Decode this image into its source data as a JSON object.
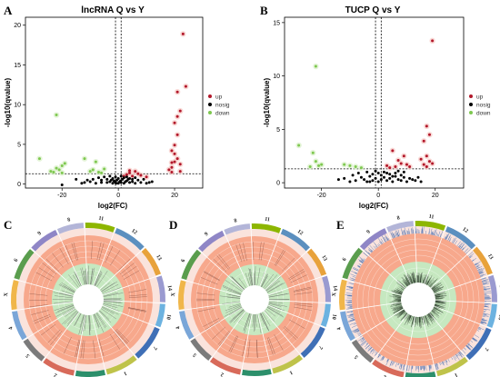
{
  "panels": {
    "A": "A",
    "B": "B",
    "C": "C",
    "D": "D",
    "E": "E"
  },
  "colors": {
    "up": "#b2182b",
    "nosig": "#000000",
    "down": "#7ec850",
    "ring_outer": "#f1b1a5",
    "ring_salmon": "#f7a88c",
    "ring_green": "#c6e8c0",
    "ring_pale": "#fae3dc"
  },
  "chart_data": [
    {
      "type": "scatter",
      "id": "A",
      "title": "lncRNA Q vs Y",
      "xlabel": "log2(FC)",
      "ylabel": "-log10(qvalue)",
      "xlim": [
        -33,
        30
      ],
      "ylim": [
        -0.5,
        21
      ],
      "xticks": [
        -20,
        0,
        20
      ],
      "yticks": [
        0,
        5,
        10,
        15,
        20
      ],
      "vlines": [
        -1,
        1
      ],
      "hline": 1.3,
      "legend": {
        "position": "right",
        "entries": [
          "up",
          "nosig",
          "down"
        ]
      },
      "series": [
        {
          "name": "up",
          "points": [
            [
              23,
              18.9
            ],
            [
              24,
              12.3
            ],
            [
              21,
              11.6
            ],
            [
              22,
              9.2
            ],
            [
              21,
              8.5
            ],
            [
              20,
              7.7
            ],
            [
              21,
              6.2
            ],
            [
              20,
              4.9
            ],
            [
              19,
              4.2
            ],
            [
              20,
              3.8
            ],
            [
              21,
              3.2
            ],
            [
              19,
              2.7
            ],
            [
              22,
              2.5
            ],
            [
              19,
              2.1
            ],
            [
              20,
              2.8
            ],
            [
              18,
              1.8
            ],
            [
              22,
              1.6
            ],
            [
              19,
              1.5
            ],
            [
              4,
              1.4
            ],
            [
              6,
              1.6
            ],
            [
              3,
              1.2
            ],
            [
              5,
              1.0
            ],
            [
              7,
              1.3
            ],
            [
              8,
              1.1
            ],
            [
              10,
              0.9
            ],
            [
              4,
              1.7
            ],
            [
              2,
              1.0
            ]
          ]
        },
        {
          "name": "nosig",
          "points": [
            [
              -6,
              0.2
            ],
            [
              -4,
              0.6
            ],
            [
              -3,
              0.3
            ],
            [
              -2,
              0.1
            ],
            [
              -1.5,
              0.4
            ],
            [
              -1,
              0.2
            ],
            [
              -0.5,
              0.5
            ],
            [
              0,
              0.1
            ],
            [
              0.5,
              0.3
            ],
            [
              1,
              0.2
            ],
            [
              1.5,
              0.6
            ],
            [
              2,
              0.1
            ],
            [
              3,
              0.4
            ],
            [
              4,
              0.2
            ],
            [
              5,
              0.3
            ],
            [
              6,
              0.1
            ],
            [
              7,
              0.5
            ],
            [
              8,
              0.2
            ],
            [
              -8,
              0.1
            ],
            [
              -10,
              0.3
            ],
            [
              -12,
              0.2
            ],
            [
              -9,
              0.6
            ],
            [
              -7,
              0.8
            ],
            [
              -5,
              0.9
            ],
            [
              -3,
              1.0
            ],
            [
              -2,
              0.7
            ],
            [
              -1,
              0.9
            ],
            [
              0,
              0.7
            ],
            [
              1,
              1.0
            ],
            [
              2,
              0.8
            ],
            [
              3,
              0.9
            ],
            [
              4,
              0.7
            ],
            [
              5,
              0.6
            ],
            [
              6,
              0.8
            ],
            [
              -4,
              0.2
            ],
            [
              -2.5,
              0.5
            ],
            [
              -0.8,
              0.1
            ],
            [
              0.8,
              0.4
            ],
            [
              2.5,
              0.3
            ],
            [
              3.5,
              0.6
            ],
            [
              -20,
              -0.1
            ],
            [
              -15,
              0.6
            ],
            [
              -13,
              0.1
            ],
            [
              -11,
              0.5
            ],
            [
              10,
              0.1
            ],
            [
              12,
              0.3
            ],
            [
              9,
              0.6
            ],
            [
              11,
              0.2
            ],
            [
              -6,
              0.5
            ],
            [
              -1.2,
              0.3
            ]
          ]
        },
        {
          "name": "down",
          "points": [
            [
              -22,
              8.7
            ],
            [
              -28,
              3.2
            ],
            [
              -20,
              2.3
            ],
            [
              -22,
              2.0
            ],
            [
              -21,
              1.8
            ],
            [
              -23,
              1.5
            ],
            [
              -20,
              1.4
            ],
            [
              -19,
              2.6
            ],
            [
              -24,
              1.6
            ],
            [
              -8,
              2.8
            ],
            [
              -7,
              1.5
            ],
            [
              -10,
              1.6
            ],
            [
              -6,
              1.4
            ],
            [
              -12,
              3.2
            ],
            [
              -5,
              1.9
            ],
            [
              -9,
              1.8
            ]
          ]
        }
      ]
    },
    {
      "type": "scatter",
      "id": "B",
      "title": "TUCP Q vs Y",
      "xlabel": "log2(FC)",
      "ylabel": "-log10(qvalue)",
      "xlim": [
        -33,
        30
      ],
      "ylim": [
        -0.5,
        15.5
      ],
      "xticks": [
        -20,
        0,
        20
      ],
      "yticks": [
        0,
        5,
        10,
        15
      ],
      "vlines": [
        -1,
        1
      ],
      "hline": 1.3,
      "legend": {
        "position": "right",
        "entries": [
          "up",
          "nosig",
          "down"
        ]
      },
      "series": [
        {
          "name": "up",
          "points": [
            [
              19,
              13.3
            ],
            [
              17,
              5.3
            ],
            [
              18,
              4.5
            ],
            [
              16,
              3.9
            ],
            [
              17,
              2.5
            ],
            [
              15,
              2.2
            ],
            [
              18,
              2.0
            ],
            [
              19,
              1.8
            ],
            [
              16,
              1.7
            ],
            [
              17,
              1.5
            ],
            [
              5,
              3.0
            ],
            [
              7,
              2.1
            ],
            [
              8,
              1.8
            ],
            [
              10,
              1.7
            ],
            [
              4,
              1.4
            ],
            [
              6,
              1.5
            ],
            [
              3,
              1.6
            ],
            [
              11,
              1.5
            ],
            [
              9,
              2.5
            ]
          ]
        },
        {
          "name": "nosig",
          "points": [
            [
              -8,
              0.2
            ],
            [
              -6,
              0.5
            ],
            [
              -5,
              0.3
            ],
            [
              -4,
              0.1
            ],
            [
              -3,
              0.6
            ],
            [
              -2,
              0.2
            ],
            [
              -1,
              0.4
            ],
            [
              0,
              0.1
            ],
            [
              1,
              0.3
            ],
            [
              2,
              0.5
            ],
            [
              3,
              0.2
            ],
            [
              4,
              0.4
            ],
            [
              5,
              0.1
            ],
            [
              6,
              0.6
            ],
            [
              7,
              0.3
            ],
            [
              8,
              0.2
            ],
            [
              9,
              0.5
            ],
            [
              10,
              0.1
            ],
            [
              11,
              0.4
            ],
            [
              12,
              0.3
            ],
            [
              -10,
              0.1
            ],
            [
              -12,
              0.4
            ],
            [
              -9,
              0.7
            ],
            [
              -7,
              0.9
            ],
            [
              -4,
              1.0
            ],
            [
              -2,
              0.8
            ],
            [
              0,
              0.9
            ],
            [
              2,
              1.0
            ],
            [
              4,
              0.8
            ],
            [
              6,
              0.9
            ],
            [
              8,
              0.7
            ],
            [
              13,
              0.2
            ],
            [
              14,
              0.5
            ],
            [
              15,
              0.1
            ],
            [
              -14,
              0.3
            ],
            [
              -3,
              0.1
            ],
            [
              1,
              0.7
            ],
            [
              3,
              0.9
            ],
            [
              5,
              0.6
            ],
            [
              7,
              1.1
            ],
            [
              -1,
              1.1
            ],
            [
              9,
              1.0
            ]
          ]
        },
        {
          "name": "down",
          "points": [
            [
              -22,
              10.9
            ],
            [
              -28,
              3.5
            ],
            [
              -23,
              2.8
            ],
            [
              -21,
              1.6
            ],
            [
              -24,
              1.5
            ],
            [
              -20,
              1.7
            ],
            [
              -22,
              2.0
            ],
            [
              -10,
              1.6
            ],
            [
              -8,
              1.5
            ],
            [
              -12,
              1.7
            ],
            [
              -6,
              1.4
            ]
          ]
        }
      ]
    }
  ],
  "circos": [
    {
      "id": "C",
      "labels": [
        "11",
        "12",
        "13",
        "14",
        "10",
        "7",
        "1",
        "3",
        "2",
        "5",
        "4",
        "X",
        "6",
        "9",
        "8"
      ]
    },
    {
      "id": "D",
      "labels": [
        "11",
        "12",
        "13",
        "14",
        "10",
        "7",
        "1",
        "3",
        "2",
        "5",
        "4",
        "X",
        "6",
        "9",
        "8"
      ]
    },
    {
      "id": "E",
      "labels": [
        "11",
        "12",
        "13",
        "14",
        "10",
        "7",
        "1",
        "3",
        "2",
        "5",
        "4",
        "X",
        "6",
        "9",
        "8"
      ]
    }
  ]
}
